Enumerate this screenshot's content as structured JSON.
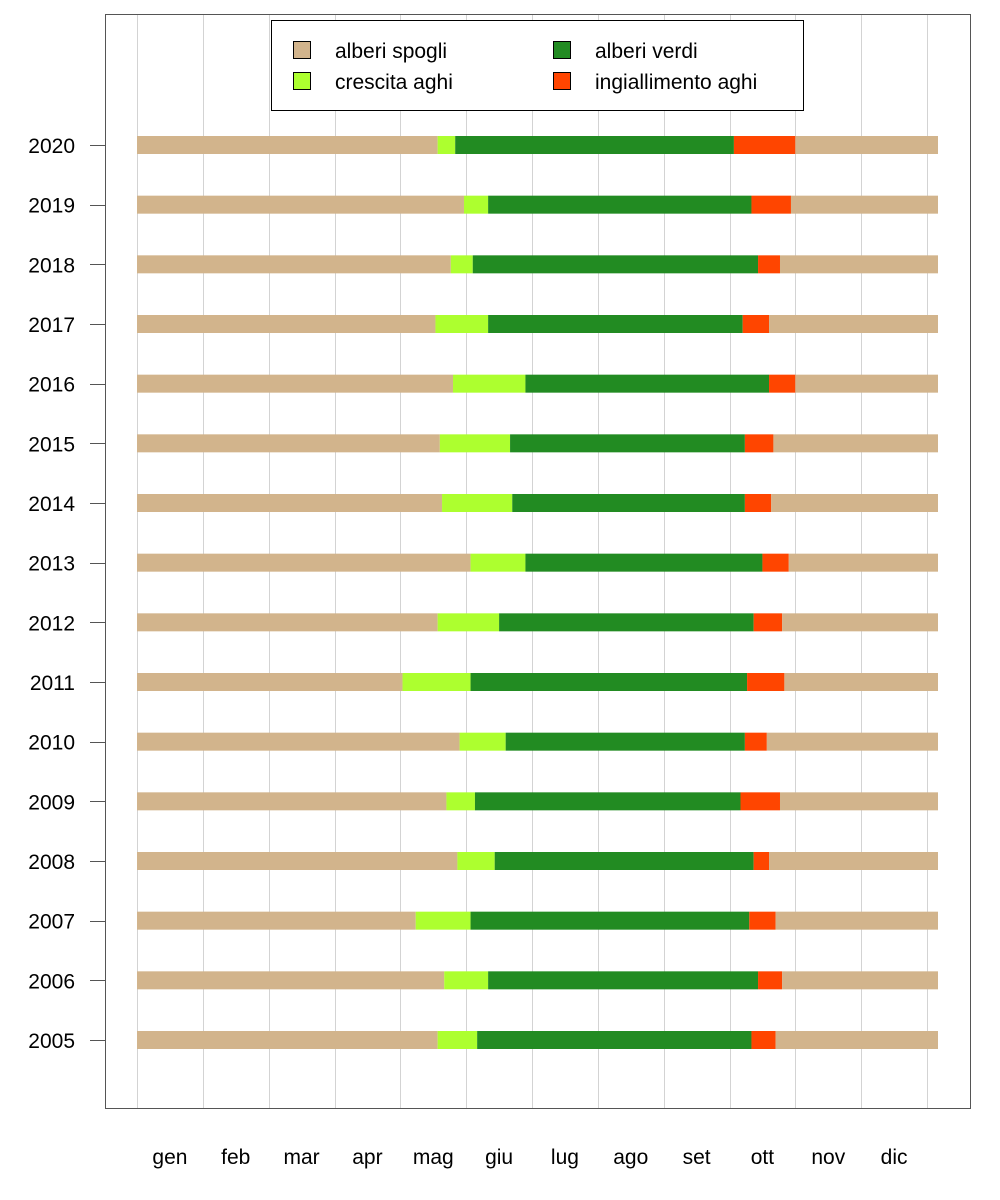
{
  "chart_data": {
    "type": "bar",
    "orientation": "horizontal",
    "stacked": true,
    "title": "",
    "xlabel": "",
    "ylabel": "",
    "x_unit": "day of year",
    "xlim": [
      0,
      365
    ],
    "grid": "vertical",
    "legend_position": "top-center",
    "month_labels": [
      "gen",
      "feb",
      "mar",
      "apr",
      "mag",
      "giu",
      "lug",
      "ago",
      "set",
      "ott",
      "nov",
      "dic"
    ],
    "phases": [
      {
        "name": "alberi spogli",
        "color": "#D2B48C"
      },
      {
        "name": "crescita aghi",
        "color": "#ADFF2F"
      },
      {
        "name": "alberi verdi",
        "color": "#228B22"
      },
      {
        "name": "ingiallimento aghi",
        "color": "#FF4500"
      }
    ],
    "legend_order": [
      "alberi spogli",
      "alberi verdi",
      "crescita aghi",
      "ingiallimento aghi"
    ],
    "years": [
      {
        "year": "2020",
        "needle_growth_start": 137,
        "green_start": 145,
        "yellowing_start": 272,
        "bare_start": 300
      },
      {
        "year": "2019",
        "needle_growth_start": 149,
        "green_start": 160,
        "yellowing_start": 280,
        "bare_start": 298
      },
      {
        "year": "2018",
        "needle_growth_start": 143,
        "green_start": 153,
        "yellowing_start": 283,
        "bare_start": 293
      },
      {
        "year": "2017",
        "needle_growth_start": 136,
        "green_start": 160,
        "yellowing_start": 276,
        "bare_start": 288
      },
      {
        "year": "2016",
        "needle_growth_start": 144,
        "green_start": 177,
        "yellowing_start": 288,
        "bare_start": 300
      },
      {
        "year": "2015",
        "needle_growth_start": 138,
        "green_start": 170,
        "yellowing_start": 277,
        "bare_start": 290
      },
      {
        "year": "2014",
        "needle_growth_start": 139,
        "green_start": 171,
        "yellowing_start": 277,
        "bare_start": 289
      },
      {
        "year": "2013",
        "needle_growth_start": 152,
        "green_start": 177,
        "yellowing_start": 285,
        "bare_start": 297
      },
      {
        "year": "2012",
        "needle_growth_start": 137,
        "green_start": 165,
        "yellowing_start": 281,
        "bare_start": 294
      },
      {
        "year": "2011",
        "needle_growth_start": 121,
        "green_start": 152,
        "yellowing_start": 278,
        "bare_start": 295
      },
      {
        "year": "2010",
        "needle_growth_start": 147,
        "green_start": 168,
        "yellowing_start": 277,
        "bare_start": 287
      },
      {
        "year": "2009",
        "needle_growth_start": 141,
        "green_start": 154,
        "yellowing_start": 275,
        "bare_start": 293
      },
      {
        "year": "2008",
        "needle_growth_start": 146,
        "green_start": 163,
        "yellowing_start": 281,
        "bare_start": 288
      },
      {
        "year": "2007",
        "needle_growth_start": 127,
        "green_start": 152,
        "yellowing_start": 279,
        "bare_start": 291
      },
      {
        "year": "2006",
        "needle_growth_start": 140,
        "green_start": 160,
        "yellowing_start": 283,
        "bare_start": 294
      },
      {
        "year": "2005",
        "needle_growth_start": 137,
        "green_start": 155,
        "yellowing_start": 280,
        "bare_start": 291
      }
    ]
  }
}
